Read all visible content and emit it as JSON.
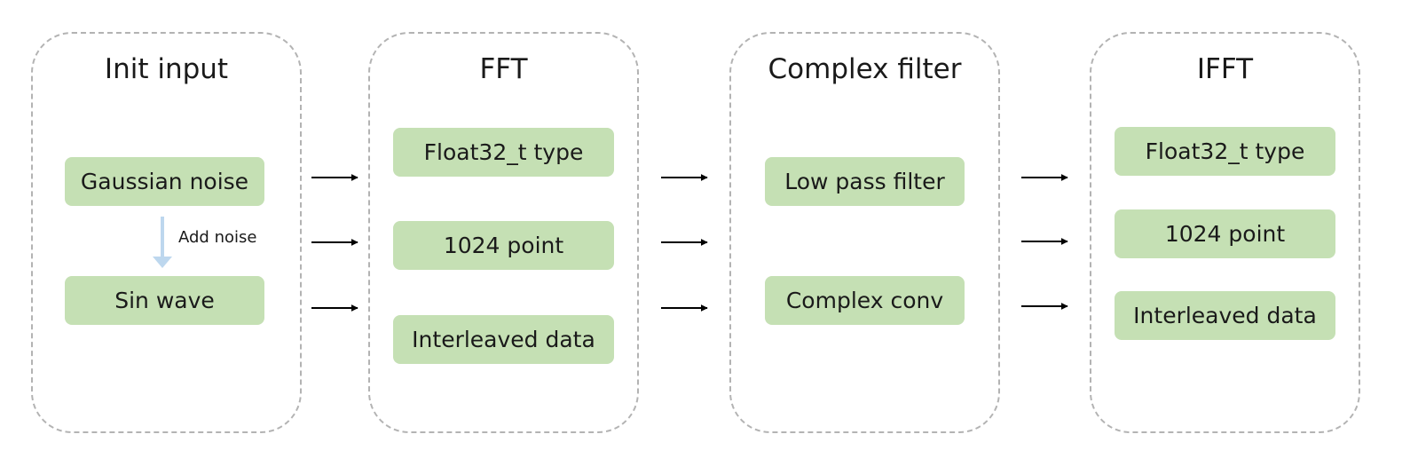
{
  "groups": [
    {
      "title": "Init input",
      "nodes": [
        "Gaussian noise",
        "Sin wave"
      ],
      "edge_label": "Add noise"
    },
    {
      "title": "FFT",
      "nodes": [
        "Float32_t type",
        "1024 point",
        "Interleaved data"
      ]
    },
    {
      "title": "Complex filter",
      "nodes": [
        "Low pass filter",
        "Complex conv"
      ]
    },
    {
      "title": "IFFT",
      "nodes": [
        "Float32_t type",
        "1024 point",
        "Interleaved data"
      ]
    }
  ],
  "colors": {
    "node_fill": "#c5e0b4",
    "group_border": "#b3b3b3",
    "arrow": "#000000",
    "internal_arrow": "#bdd7ee"
  }
}
